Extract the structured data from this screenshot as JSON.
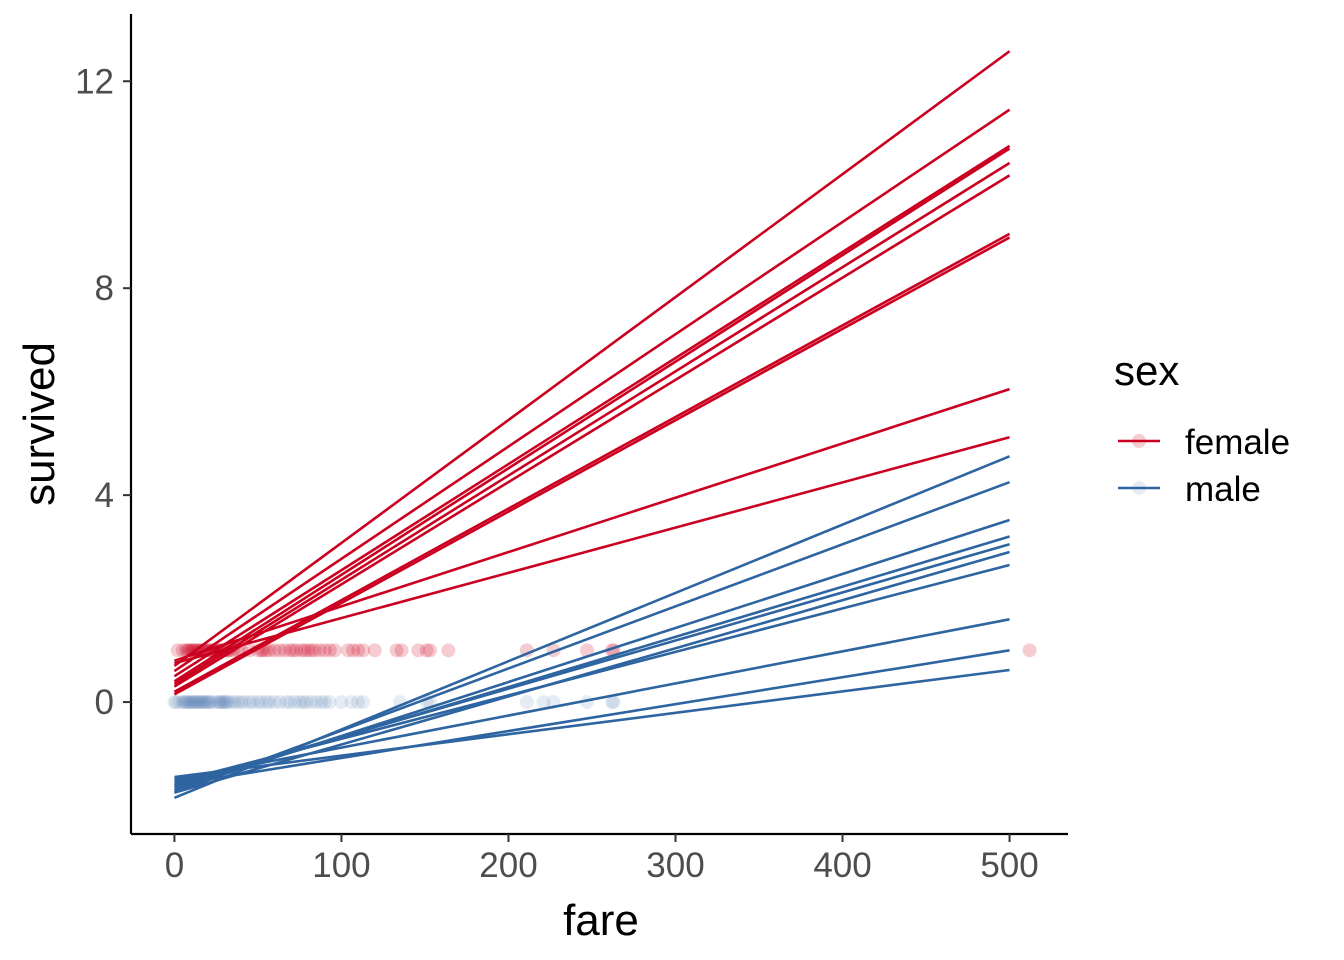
{
  "chart_data": {
    "type": "scatter",
    "xlabel": "fare",
    "ylabel": "survived",
    "xlim": [
      -26,
      535
    ],
    "ylim": [
      -2.55,
      13.3
    ],
    "xticks": [
      0,
      100,
      200,
      300,
      400,
      500
    ],
    "yticks": [
      0,
      4,
      8,
      12
    ],
    "grid": false,
    "legend": {
      "title": "sex",
      "position": "right",
      "entries": [
        {
          "label": "female",
          "color": "#cb0020"
        },
        {
          "label": "male",
          "color": "#2e65a1"
        }
      ]
    },
    "series": [
      {
        "name": "female",
        "color": "#cb0020",
        "points": {
          "y": 1,
          "x": [
            2,
            5,
            7,
            8,
            9,
            10,
            11,
            12,
            13,
            14,
            15,
            16,
            17,
            18,
            19,
            20,
            21,
            22,
            23,
            24,
            25,
            26,
            27,
            28,
            29,
            30,
            31,
            32,
            33,
            35,
            38,
            40,
            45,
            50,
            52,
            53,
            55,
            57,
            60,
            63,
            66,
            69,
            71,
            73,
            76,
            78,
            80,
            82,
            84,
            87,
            90,
            93,
            96,
            104,
            107,
            110,
            113,
            120,
            133,
            136,
            146,
            151,
            153,
            164,
            211,
            227,
            247,
            262,
            263,
            512
          ]
        },
        "lines": [
          {
            "x": [
              0,
              500
            ],
            "y": [
              0.7,
              12.58
            ]
          },
          {
            "x": [
              0,
              500
            ],
            "y": [
              0.6,
              11.45
            ]
          },
          {
            "x": [
              0,
              500
            ],
            "y": [
              0.5,
              10.75
            ]
          },
          {
            "x": [
              0,
              500
            ],
            "y": [
              0.4,
              10.7
            ]
          },
          {
            "x": [
              0,
              500
            ],
            "y": [
              0.35,
              10.42
            ]
          },
          {
            "x": [
              0,
              500
            ],
            "y": [
              0.3,
              10.18
            ]
          },
          {
            "x": [
              0,
              500
            ],
            "y": [
              0.2,
              9.05
            ]
          },
          {
            "x": [
              0,
              500
            ],
            "y": [
              0.15,
              8.98
            ]
          },
          {
            "x": [
              0,
              500
            ],
            "y": [
              0.8,
              6.05
            ]
          },
          {
            "x": [
              0,
              500
            ],
            "y": [
              0.75,
              5.12
            ]
          }
        ]
      },
      {
        "name": "male",
        "color": "#2e65a1",
        "points": {
          "y": 0,
          "x": [
            0,
            1,
            3,
            5,
            6,
            7,
            8,
            9,
            10,
            11,
            12,
            13,
            14,
            15,
            16,
            17,
            18,
            19,
            20,
            21,
            22,
            24,
            26,
            27,
            28,
            29,
            30,
            31,
            32,
            34,
            36,
            38,
            40,
            42,
            45,
            47,
            50,
            52,
            55,
            57,
            60,
            63,
            67,
            69,
            72,
            75,
            77,
            79,
            82,
            85,
            88,
            90,
            93,
            100,
            106,
            110,
            113,
            135,
            151,
            153,
            211,
            221,
            227,
            247,
            262,
            263
          ]
        },
        "lines": [
          {
            "x": [
              0,
              500
            ],
            "y": [
              -1.85,
              4.75
            ]
          },
          {
            "x": [
              0,
              500
            ],
            "y": [
              -1.75,
              4.25
            ]
          },
          {
            "x": [
              0,
              500
            ],
            "y": [
              -1.7,
              3.52
            ]
          },
          {
            "x": [
              0,
              500
            ],
            "y": [
              -1.65,
              3.2
            ]
          },
          {
            "x": [
              0,
              500
            ],
            "y": [
              -1.6,
              3.05
            ]
          },
          {
            "x": [
              0,
              500
            ],
            "y": [
              -1.75,
              2.9
            ]
          },
          {
            "x": [
              0,
              500
            ],
            "y": [
              -1.55,
              2.65
            ]
          },
          {
            "x": [
              0,
              500
            ],
            "y": [
              -1.5,
              1.6
            ]
          },
          {
            "x": [
              0,
              500
            ],
            "y": [
              -1.6,
              1.0
            ]
          },
          {
            "x": [
              0,
              500
            ],
            "y": [
              -1.45,
              0.62
            ]
          }
        ]
      }
    ]
  }
}
